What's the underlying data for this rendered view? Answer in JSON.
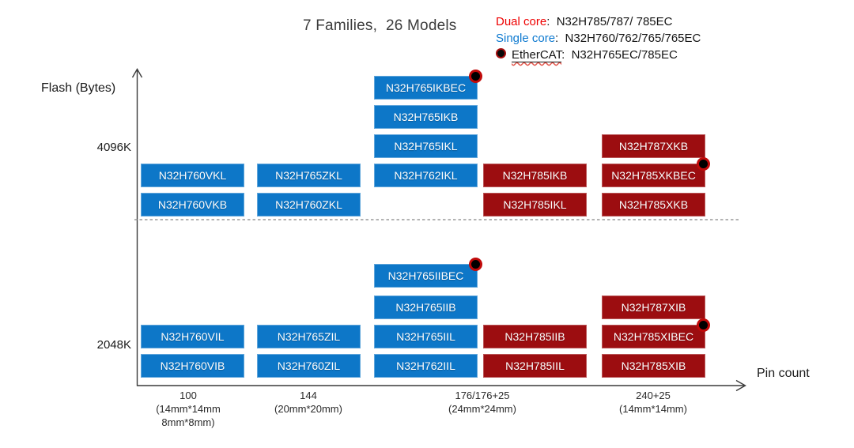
{
  "legend": {
    "dual": {
      "label": "Dual core",
      "models": ":  N32H785/787/ 785EC"
    },
    "single": {
      "label": "Single core",
      "models": ":  N32H760/762/765/765EC"
    },
    "ethercat": {
      "label": "EtherCAT",
      "models": ":  N32H765EC/785EC"
    }
  },
  "axes": {
    "x_ticks": [
      {
        "line1": "100",
        "line2": "(14mm*14mm",
        "line3": "8mm*8mm)"
      },
      {
        "line1": "144",
        "line2": "(20mm*20mm)"
      },
      {
        "line1": "176/176+25",
        "line2": "(24mm*24mm)"
      },
      {
        "line1": "240+25",
        "line2": "(14mm*14mm)"
      }
    ]
  },
  "colors": {
    "single_core_blue": "#0d77c8",
    "dual_core_red": "#9c0d10",
    "legend_red": "#ee0000",
    "legend_blue": "#0e7ad0",
    "ethercat_dot": "#000000",
    "ethercat_ring": "#c00a0a",
    "dashed_separator": "#9a9a9a"
  },
  "chart_data": {
    "type": "scatter",
    "title": "7 Families,  26 Models",
    "xlabel": "Pin count",
    "ylabel": "Flash (Bytes)",
    "x_categories": [
      "100 (14mm*14mm 8mm*8mm)",
      "144 (20mm*20mm)",
      "176/176+25 (24mm*24mm)",
      "240+25 (14mm*14mm)"
    ],
    "y_categories": [
      "4096K",
      "2048K"
    ],
    "legend_position": "top-right",
    "series_legend": [
      {
        "name": "Dual core",
        "models": "N32H785/787/ 785EC",
        "color": "#9c0d10"
      },
      {
        "name": "Single core",
        "models": "N32H760/762/765/765EC",
        "color": "#0d77c8"
      },
      {
        "name": "EtherCAT",
        "models": "N32H765EC/785EC",
        "marker": "black-dot"
      }
    ],
    "points": [
      {
        "model": "N32H765IKBEC",
        "pin_count": "176/176+25",
        "flash": "4096K",
        "core": "single",
        "ethercat": true,
        "col": 2,
        "row": "A"
      },
      {
        "model": "N32H765IKB",
        "pin_count": "176/176+25",
        "flash": "4096K",
        "core": "single",
        "ethercat": false,
        "col": 2,
        "row": "B"
      },
      {
        "model": "N32H765IKL",
        "pin_count": "176/176+25",
        "flash": "4096K",
        "core": "single",
        "ethercat": false,
        "col": 2,
        "row": "C"
      },
      {
        "model": "N32H787XKB",
        "pin_count": "240+25",
        "flash": "4096K",
        "core": "dual",
        "ethercat": false,
        "col": 4,
        "row": "C"
      },
      {
        "model": "N32H760VKL",
        "pin_count": "100",
        "flash": "4096K",
        "core": "single",
        "ethercat": false,
        "col": 0,
        "row": "D"
      },
      {
        "model": "N32H765ZKL",
        "pin_count": "144",
        "flash": "4096K",
        "core": "single",
        "ethercat": false,
        "col": 1,
        "row": "D"
      },
      {
        "model": "N32H762IKL",
        "pin_count": "176/176+25",
        "flash": "4096K",
        "core": "single",
        "ethercat": false,
        "col": 2,
        "row": "D"
      },
      {
        "model": "N32H785IKB",
        "pin_count": "176/176+25",
        "flash": "4096K",
        "core": "dual",
        "ethercat": false,
        "col": 3,
        "row": "D"
      },
      {
        "model": "N32H785XKBEC",
        "pin_count": "240+25",
        "flash": "4096K",
        "core": "dual",
        "ethercat": true,
        "col": 4,
        "row": "D"
      },
      {
        "model": "N32H760VKB",
        "pin_count": "100",
        "flash": "4096K",
        "core": "single",
        "ethercat": false,
        "col": 0,
        "row": "E"
      },
      {
        "model": "N32H760ZKL",
        "pin_count": "144",
        "flash": "4096K",
        "core": "single",
        "ethercat": false,
        "col": 1,
        "row": "E"
      },
      {
        "model": "N32H785IKL",
        "pin_count": "176/176+25",
        "flash": "4096K",
        "core": "dual",
        "ethercat": false,
        "col": 3,
        "row": "E"
      },
      {
        "model": "N32H785XKB",
        "pin_count": "240+25",
        "flash": "4096K",
        "core": "dual",
        "ethercat": false,
        "col": 4,
        "row": "E"
      },
      {
        "model": "N32H765IIBEC",
        "pin_count": "176/176+25",
        "flash": "2048K",
        "core": "single",
        "ethercat": true,
        "col": 2,
        "row": "F"
      },
      {
        "model": "N32H765IIB",
        "pin_count": "176/176+25",
        "flash": "2048K",
        "core": "single",
        "ethercat": false,
        "col": 2,
        "row": "G"
      },
      {
        "model": "N32H787XIB",
        "pin_count": "240+25",
        "flash": "2048K",
        "core": "dual",
        "ethercat": false,
        "col": 4,
        "row": "G"
      },
      {
        "model": "N32H760VIL",
        "pin_count": "100",
        "flash": "2048K",
        "core": "single",
        "ethercat": false,
        "col": 0,
        "row": "H"
      },
      {
        "model": "N32H765ZIL",
        "pin_count": "144",
        "flash": "2048K",
        "core": "single",
        "ethercat": false,
        "col": 1,
        "row": "H"
      },
      {
        "model": "N32H765IIL",
        "pin_count": "176/176+25",
        "flash": "2048K",
        "core": "single",
        "ethercat": false,
        "col": 2,
        "row": "H"
      },
      {
        "model": "N32H785IIB",
        "pin_count": "176/176+25",
        "flash": "2048K",
        "core": "dual",
        "ethercat": false,
        "col": 3,
        "row": "H"
      },
      {
        "model": "N32H785XIBEC",
        "pin_count": "240+25",
        "flash": "2048K",
        "core": "dual",
        "ethercat": true,
        "col": 4,
        "row": "H"
      },
      {
        "model": "N32H760VIB",
        "pin_count": "100",
        "flash": "2048K",
        "core": "single",
        "ethercat": false,
        "col": 0,
        "row": "I"
      },
      {
        "model": "N32H760ZIL",
        "pin_count": "144",
        "flash": "2048K",
        "core": "single",
        "ethercat": false,
        "col": 1,
        "row": "I"
      },
      {
        "model": "N32H762IIL",
        "pin_count": "176/176+25",
        "flash": "2048K",
        "core": "single",
        "ethercat": false,
        "col": 2,
        "row": "I"
      },
      {
        "model": "N32H785IIL",
        "pin_count": "176/176+25",
        "flash": "2048K",
        "core": "dual",
        "ethercat": false,
        "col": 3,
        "row": "I"
      },
      {
        "model": "N32H785XIB",
        "pin_count": "240+25",
        "flash": "2048K",
        "core": "dual",
        "ethercat": false,
        "col": 4,
        "row": "I"
      }
    ]
  }
}
